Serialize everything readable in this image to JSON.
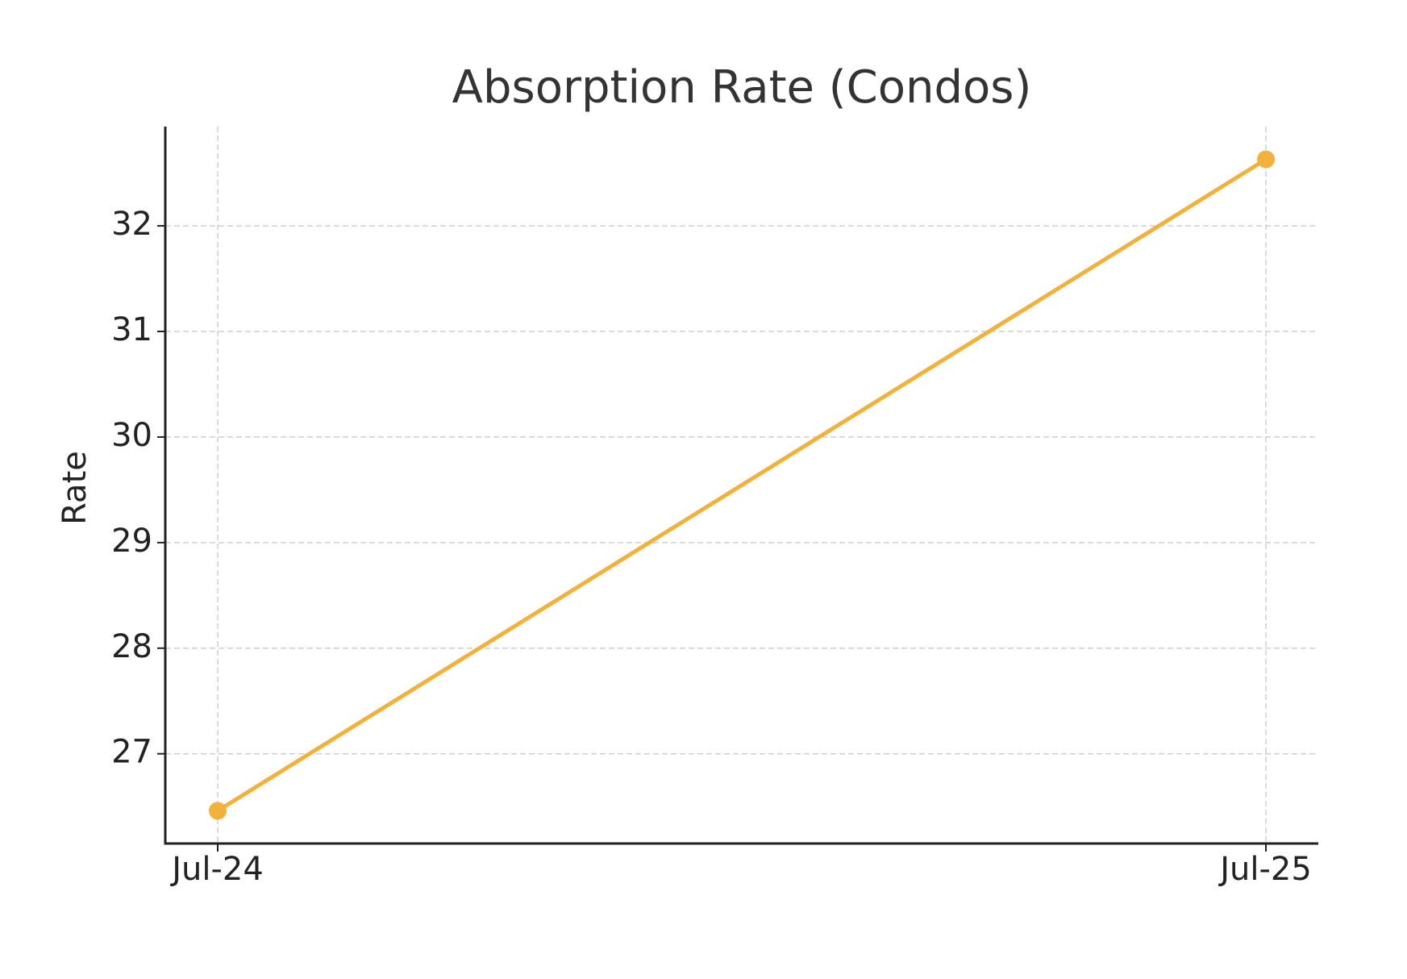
{
  "chart_data": {
    "type": "line",
    "title": "Absorption Rate (Condos)",
    "y_label": "Rate",
    "categories": [
      "Jul-24",
      "Jul-25"
    ],
    "series": [
      {
        "name": "Absorption Rate",
        "color": "#f2b13c",
        "values": [
          26.46,
          32.63
        ]
      }
    ],
    "ylim": [
      26.15,
      32.94
    ],
    "yticks": [
      27,
      28,
      29,
      30,
      31,
      32
    ],
    "grid": true
  }
}
